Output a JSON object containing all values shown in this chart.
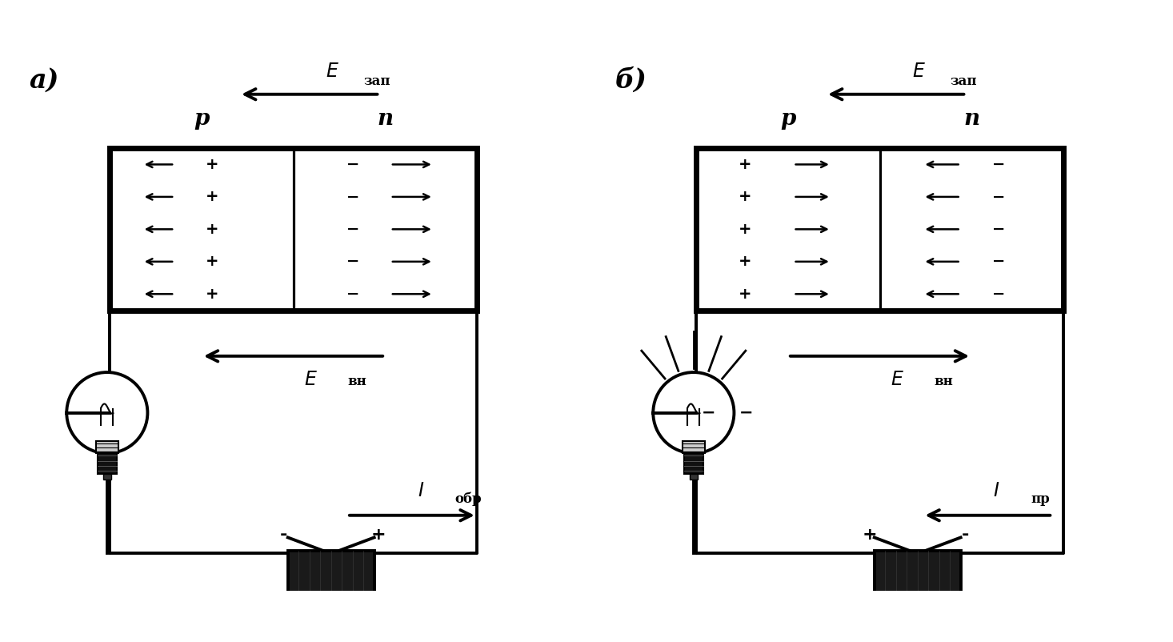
{
  "bg_color": "#ffffff",
  "fig_width": 14.66,
  "fig_height": 8.02,
  "diagram_a": {
    "label": "а)",
    "p_label": "p",
    "n_label": "n",
    "e_zap_label": "E_зап",
    "e_vn_label": "E_вн",
    "i_label": "I_обр",
    "e_zap_dir": "left",
    "e_vn_dir": "left",
    "i_dir": "right",
    "battery_polarity": [
      "-",
      "+"
    ],
    "glowing": false
  },
  "diagram_b": {
    "label": "б)",
    "p_label": "p",
    "n_label": "n",
    "e_zap_label": "E_зап",
    "e_vn_label": "E_вн",
    "i_label": "I_пр",
    "e_zap_dir": "left",
    "e_vn_dir": "right",
    "i_dir": "left",
    "battery_polarity": [
      "+",
      "-"
    ],
    "glowing": true
  }
}
